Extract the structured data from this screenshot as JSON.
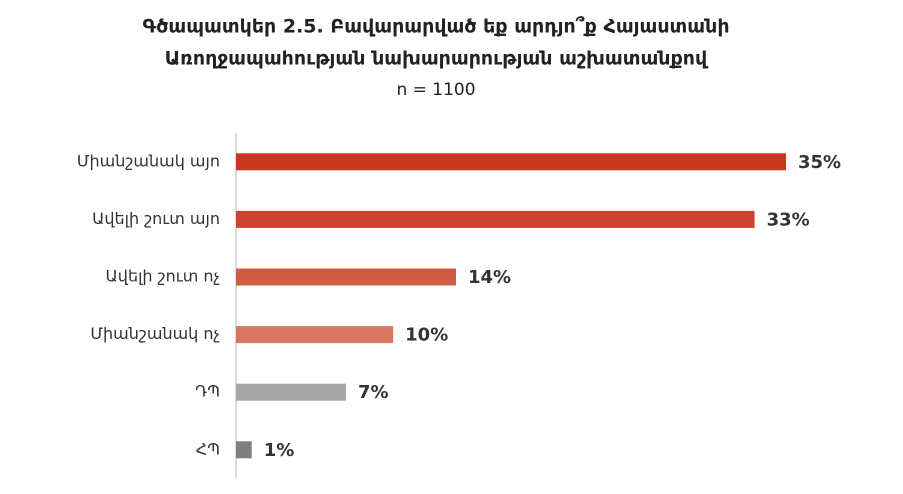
{
  "chart_data": {
    "type": "bar",
    "orientation": "horizontal",
    "title": [
      "Գծապատկեր 2.5. Բավարարված եք արդյո՞ք Հայաստանի",
      "Առողջապահության նախարարության աշխատանքով"
    ],
    "subtitle": "n = 1100",
    "categories": [
      "Միանշանակ այո",
      "Ավելի շուտ այո",
      "Ավելի շուտ ոչ",
      "Միանշանակ ոչ",
      "ԴՊ",
      "ՀՊ"
    ],
    "values": [
      35,
      33,
      14,
      10,
      7,
      1
    ],
    "value_labels": [
      "35%",
      "33%",
      "14%",
      "10%",
      "7%",
      "1%"
    ],
    "colors": [
      "#c5391f",
      "#cb4430",
      "#d35a44",
      "#da7562",
      "#a6a6a6",
      "#7f7f7f"
    ]
  }
}
